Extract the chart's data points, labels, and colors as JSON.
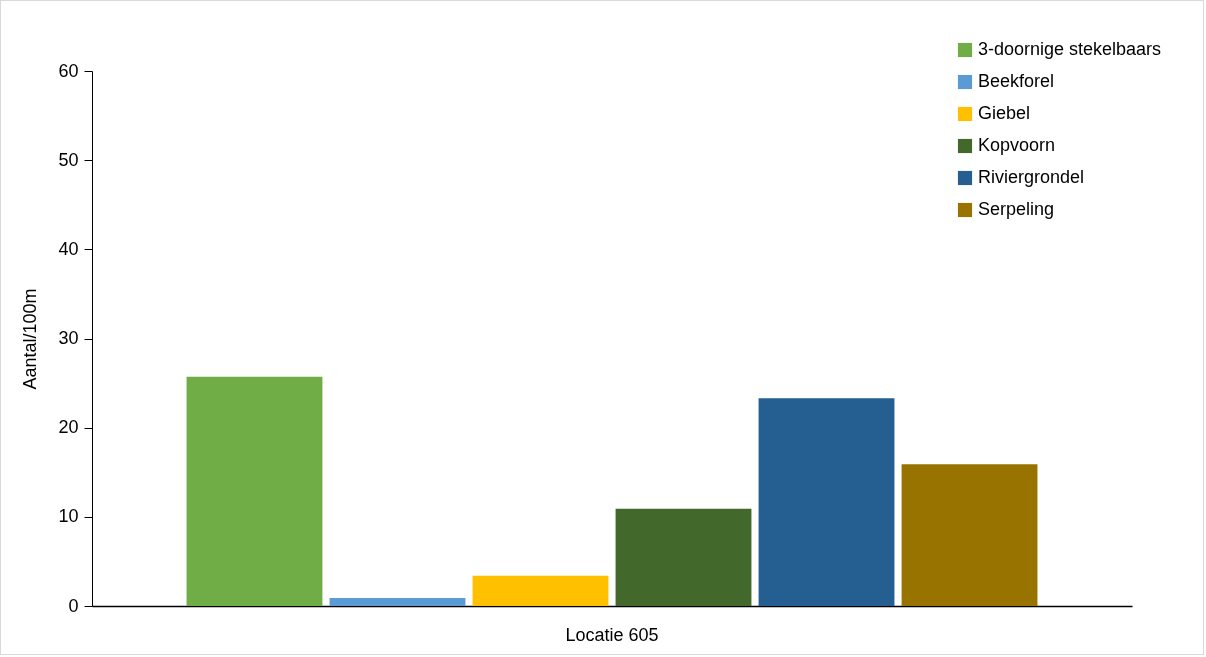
{
  "chart_data": {
    "type": "bar",
    "ylabel": "Aantal/100m",
    "categories": [
      "Locatie 605"
    ],
    "series": [
      {
        "name": "3-doornige stekelbaars",
        "color": "#70ad47",
        "values": [
          25.7
        ]
      },
      {
        "name": "Beekforel",
        "color": "#5b9bd5",
        "values": [
          0.9
        ]
      },
      {
        "name": "Giebel",
        "color": "#ffc000",
        "values": [
          3.4
        ]
      },
      {
        "name": "Kopvoorn",
        "color": "#43682b",
        "values": [
          10.9
        ]
      },
      {
        "name": "Riviergrondel",
        "color": "#255e91",
        "values": [
          23.3
        ]
      },
      {
        "name": "Serpeling",
        "color": "#997300",
        "values": [
          15.9
        ]
      }
    ],
    "ylim": [
      0,
      60
    ],
    "yticks": [
      0,
      10,
      20,
      30,
      40,
      50,
      60
    ],
    "legend": "top right"
  }
}
